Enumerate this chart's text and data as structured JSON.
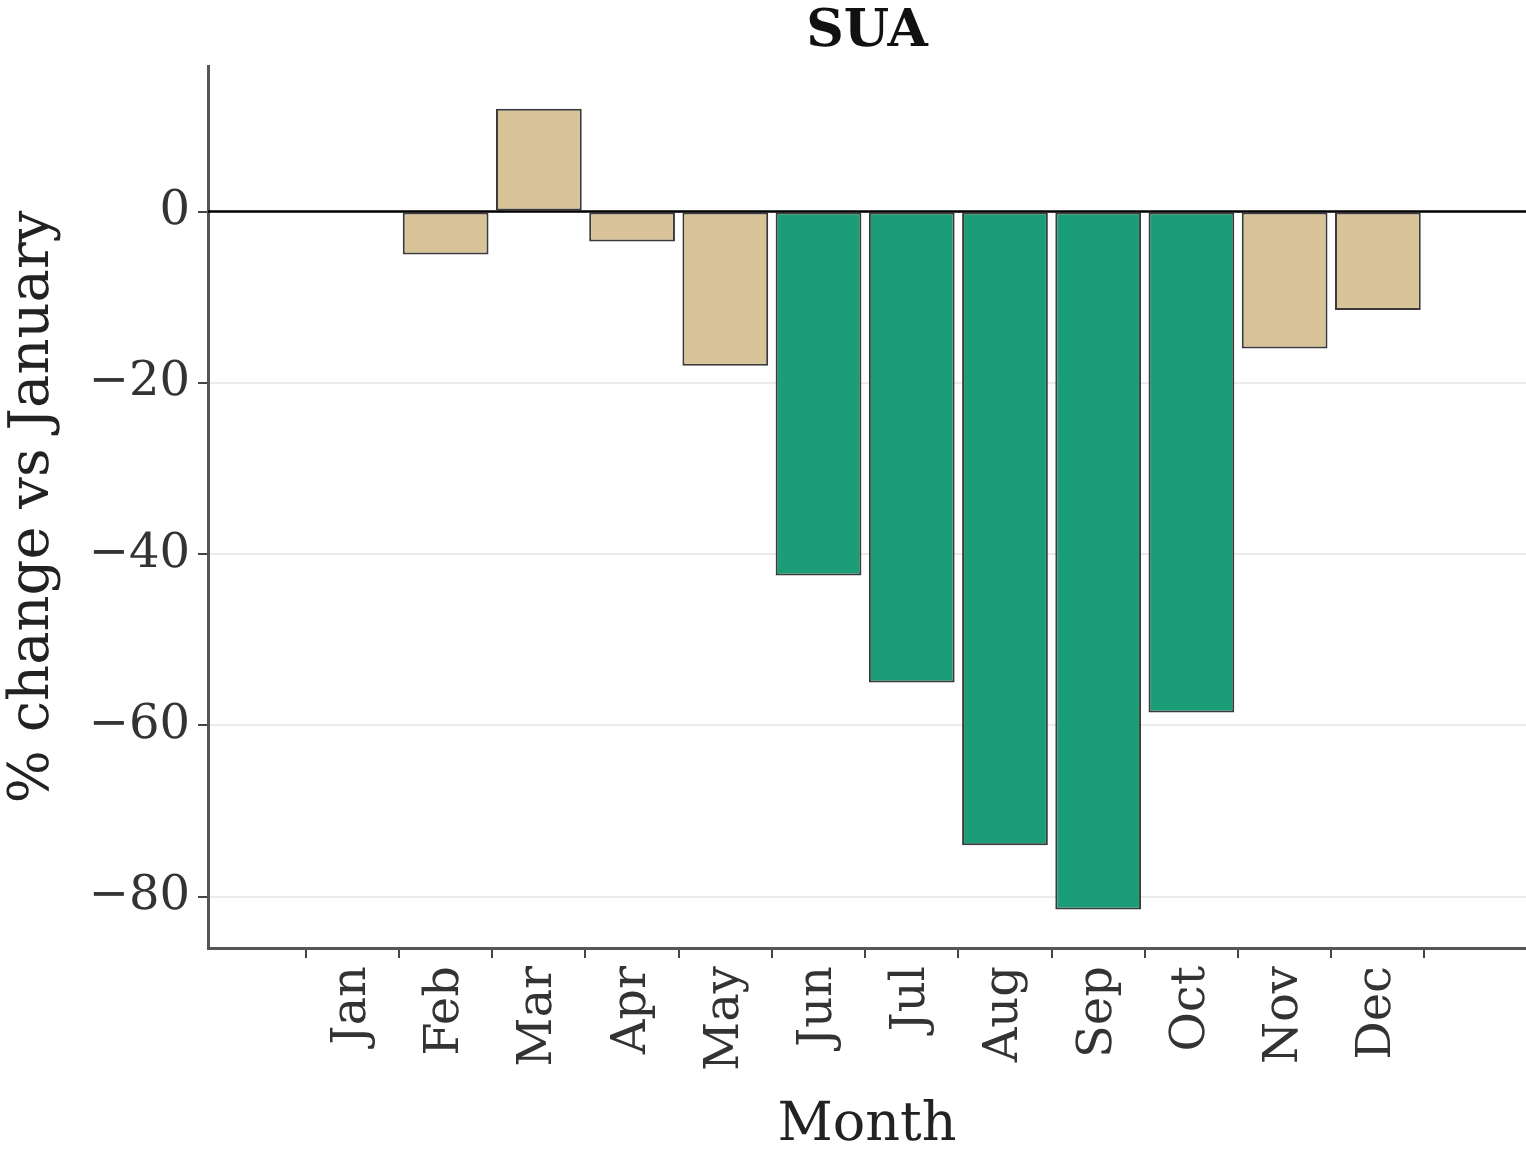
{
  "chart_data": {
    "type": "bar",
    "title": "SUA",
    "xlabel": "Month",
    "ylabel": "% change vs January",
    "categories": [
      "Jan",
      "Feb",
      "Mar",
      "Apr",
      "May",
      "Jun",
      "Jul",
      "Aug",
      "Sep",
      "Oct",
      "Nov",
      "Dec"
    ],
    "values": [
      0,
      -5,
      12,
      -3.5,
      -18,
      -42.5,
      -55,
      -74,
      -81.5,
      -58.5,
      -16,
      -11.5
    ],
    "colors": [
      "#d9c49a",
      "#d9c49a",
      "#d9c49a",
      "#d9c49a",
      "#d9c49a",
      "#1b9e77",
      "#1b9e77",
      "#1b9e77",
      "#1b9e77",
      "#1b9e77",
      "#d9c49a",
      "#d9c49a"
    ],
    "ylim": [
      -86,
      17
    ],
    "yticks": [
      {
        "value": -80,
        "label": "−80"
      },
      {
        "value": -60,
        "label": "−60"
      },
      {
        "value": -40,
        "label": "−40"
      },
      {
        "value": -20,
        "label": "−20"
      },
      0
    ],
    "grid": "y",
    "ref_lines": [
      {
        "axis": "y",
        "value": 0,
        "color": "#000000"
      }
    ]
  }
}
